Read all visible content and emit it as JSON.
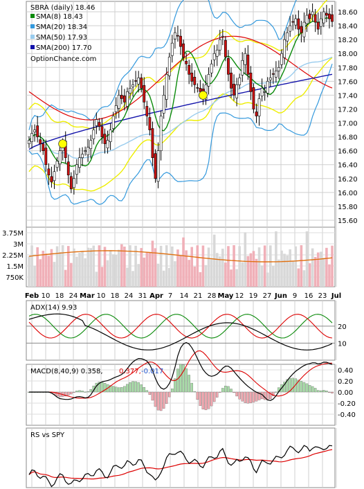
{
  "chart_data": [
    {
      "type": "candlestick",
      "panel": "price",
      "title": "SBRA (daily) 18.46",
      "watermark": "OptionChance.com",
      "legend": [
        {
          "label": "SMA(8) 18.43",
          "color": "#0a8a0a"
        },
        {
          "label": "SMA(20) 18.34",
          "color": "#3399dd"
        },
        {
          "label": "SMA(50) 17.93",
          "color": "#99ccee"
        },
        {
          "label": "SMA(200) 17.70",
          "color": "#1111aa"
        }
      ],
      "y_ticks": [
        "18.60",
        "18.40",
        "18.20",
        "18.00",
        "17.80",
        "17.60",
        "17.40",
        "17.20",
        "17.00",
        "16.80",
        "16.60",
        "16.40",
        "16.20",
        "16.00",
        "15.80",
        "15.60"
      ],
      "ylim": [
        15.5,
        18.75
      ],
      "x_ticks": [
        "Feb",
        "10",
        "18",
        "24",
        "Mar",
        "10",
        "18",
        "24",
        "31",
        "Apr",
        "7",
        "14",
        "21",
        "28",
        "May",
        "12",
        "19",
        "27",
        "Jun",
        "9",
        "16",
        "23",
        "Jul"
      ],
      "closes": [
        16.75,
        16.85,
        16.9,
        16.8,
        16.7,
        16.6,
        16.4,
        16.25,
        16.15,
        16.3,
        16.45,
        16.6,
        16.7,
        16.5,
        16.25,
        16.05,
        16.2,
        16.4,
        16.5,
        16.55,
        16.6,
        16.65,
        16.75,
        16.9,
        17.05,
        16.95,
        16.8,
        16.7,
        16.75,
        16.9,
        17.1,
        17.25,
        17.4,
        17.35,
        17.3,
        17.45,
        17.5,
        17.55,
        17.6,
        17.65,
        17.5,
        17.3,
        17.1,
        16.9,
        16.5,
        16.2,
        16.6,
        17.1,
        17.4,
        17.7,
        17.95,
        18.15,
        18.3,
        18.25,
        18.1,
        17.95,
        17.85,
        17.7,
        17.6,
        17.55,
        17.5,
        17.45,
        17.4,
        17.55,
        17.7,
        17.85,
        18.0,
        18.05,
        18.2,
        18.25,
        17.95,
        17.7,
        17.5,
        17.4,
        17.55,
        17.65,
        17.9,
        18.0,
        17.7,
        17.45,
        17.2,
        17.1,
        17.35,
        17.5,
        17.45,
        17.6,
        17.65,
        17.7,
        17.75,
        17.8,
        18.0,
        18.2,
        18.3,
        18.4,
        18.45,
        18.5,
        18.35,
        18.3,
        18.45,
        18.55,
        18.5,
        18.6,
        18.45,
        18.35,
        18.5,
        18.6,
        18.55,
        18.5,
        18.46
      ]
    },
    {
      "type": "bar",
      "panel": "volume",
      "y_ticks": [
        "3.75M",
        "3M",
        "2.25M",
        "1.5M",
        "750K"
      ]
    },
    {
      "type": "line",
      "panel": "indicator",
      "title": "ADX(14) 9.93",
      "y_ticks": [
        "20",
        "10"
      ]
    },
    {
      "type": "line",
      "panel": "indicator",
      "title": "MACD(8,40,9) 0.358,",
      "values_shown": [
        {
          "label": "0.377,",
          "color": "#dd0000"
        },
        {
          "label": "-0.017",
          "color": "#2255cc"
        }
      ],
      "y_ticks": [
        "0.40",
        "0.20",
        "0.00",
        "-0.20",
        "-0.40"
      ]
    },
    {
      "type": "line",
      "panel": "indicator",
      "title": "RS vs SPY",
      "y_ticks": []
    }
  ]
}
